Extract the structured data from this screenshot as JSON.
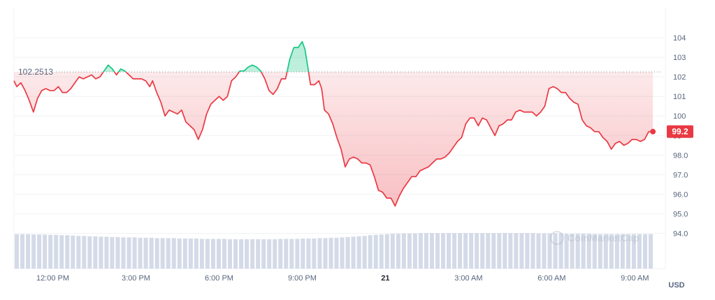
{
  "chart_data": {
    "type": "area",
    "currency_label": "USD",
    "watermark": "CoinMarketCap",
    "reference_value": 102.2513,
    "reference_label": "102.2513",
    "last_value": 99.2,
    "last_label": "99.2",
    "ylim": [
      92.2,
      105.5
    ],
    "xlim": [
      10.6,
      34.0
    ],
    "y_ticks": [
      {
        "value": 94.0,
        "label": "94.0"
      },
      {
        "value": 95.0,
        "label": "95.0"
      },
      {
        "value": 96.0,
        "label": "96.0"
      },
      {
        "value": 97.0,
        "label": "97.0"
      },
      {
        "value": 98.0,
        "label": "98.0"
      },
      {
        "value": 99.0,
        "label": "99"
      },
      {
        "value": 100.0,
        "label": "100"
      },
      {
        "value": 101.0,
        "label": "101"
      },
      {
        "value": 102.0,
        "label": "102"
      },
      {
        "value": 103.0,
        "label": "103"
      },
      {
        "value": 104.0,
        "label": "104"
      }
    ],
    "x_ticks": [
      {
        "value": 12,
        "label": "12:00 PM",
        "bold": false
      },
      {
        "value": 15,
        "label": "3:00 PM",
        "bold": false
      },
      {
        "value": 18,
        "label": "6:00 PM",
        "bold": false
      },
      {
        "value": 21,
        "label": "9:00 PM",
        "bold": false
      },
      {
        "value": 24,
        "label": "21",
        "bold": true
      },
      {
        "value": 27,
        "label": "3:00 AM",
        "bold": false
      },
      {
        "value": 30,
        "label": "6:00 AM",
        "bold": false
      },
      {
        "value": 33,
        "label": "9:00 AM",
        "bold": false
      }
    ],
    "colors": {
      "up": "#16c784",
      "down": "#ea3943",
      "grid": "#eff2f5",
      "axis_text": "#58667e",
      "volume": "#cfd6e4"
    },
    "series": [
      {
        "points": [
          [
            10.6,
            101.8
          ],
          [
            10.7,
            101.5
          ],
          [
            10.85,
            101.7
          ],
          [
            11.0,
            101.3
          ],
          [
            11.15,
            100.8
          ],
          [
            11.3,
            100.2
          ],
          [
            11.45,
            100.9
          ],
          [
            11.6,
            101.3
          ],
          [
            11.75,
            101.4
          ],
          [
            11.9,
            101.3
          ],
          [
            12.05,
            101.3
          ],
          [
            12.2,
            101.5
          ],
          [
            12.35,
            101.2
          ],
          [
            12.5,
            101.2
          ],
          [
            12.65,
            101.4
          ],
          [
            12.8,
            101.7
          ],
          [
            12.95,
            102.0
          ],
          [
            13.1,
            101.9
          ],
          [
            13.25,
            102.0
          ],
          [
            13.4,
            102.1
          ],
          [
            13.55,
            101.9
          ],
          [
            13.7,
            102.0
          ],
          [
            13.85,
            102.3
          ],
          [
            14.0,
            102.6
          ],
          [
            14.15,
            102.4
          ],
          [
            14.3,
            102.1
          ],
          [
            14.45,
            102.4
          ],
          [
            14.6,
            102.3
          ],
          [
            14.75,
            102.1
          ],
          [
            14.9,
            101.9
          ],
          [
            15.05,
            101.9
          ],
          [
            15.2,
            101.9
          ],
          [
            15.35,
            101.8
          ],
          [
            15.5,
            101.5
          ],
          [
            15.6,
            101.8
          ],
          [
            15.75,
            101.2
          ],
          [
            15.9,
            100.7
          ],
          [
            16.05,
            100.0
          ],
          [
            16.2,
            100.3
          ],
          [
            16.35,
            100.2
          ],
          [
            16.5,
            100.1
          ],
          [
            16.65,
            100.3
          ],
          [
            16.8,
            99.7
          ],
          [
            16.95,
            99.5
          ],
          [
            17.1,
            99.3
          ],
          [
            17.25,
            98.8
          ],
          [
            17.4,
            99.3
          ],
          [
            17.55,
            100.1
          ],
          [
            17.7,
            100.6
          ],
          [
            17.85,
            100.8
          ],
          [
            18.0,
            101.0
          ],
          [
            18.15,
            100.8
          ],
          [
            18.3,
            101.0
          ],
          [
            18.45,
            101.8
          ],
          [
            18.6,
            102.0
          ],
          [
            18.75,
            102.3
          ],
          [
            18.9,
            102.3
          ],
          [
            19.05,
            102.5
          ],
          [
            19.2,
            102.6
          ],
          [
            19.35,
            102.5
          ],
          [
            19.5,
            102.3
          ],
          [
            19.65,
            101.9
          ],
          [
            19.8,
            101.3
          ],
          [
            19.95,
            101.1
          ],
          [
            20.1,
            101.4
          ],
          [
            20.25,
            101.9
          ],
          [
            20.4,
            101.9
          ],
          [
            20.55,
            102.9
          ],
          [
            20.7,
            103.5
          ],
          [
            20.85,
            103.5
          ],
          [
            21.0,
            103.8
          ],
          [
            21.1,
            103.4
          ],
          [
            21.2,
            102.5
          ],
          [
            21.3,
            101.6
          ],
          [
            21.45,
            101.6
          ],
          [
            21.6,
            101.8
          ],
          [
            21.7,
            101.4
          ],
          [
            21.8,
            100.3
          ],
          [
            21.95,
            100.1
          ],
          [
            22.1,
            99.6
          ],
          [
            22.25,
            98.9
          ],
          [
            22.4,
            98.3
          ],
          [
            22.55,
            97.4
          ],
          [
            22.7,
            97.8
          ],
          [
            22.85,
            97.9
          ],
          [
            23.0,
            97.8
          ],
          [
            23.15,
            97.6
          ],
          [
            23.3,
            97.6
          ],
          [
            23.45,
            97.5
          ],
          [
            23.6,
            96.9
          ],
          [
            23.75,
            96.2
          ],
          [
            23.9,
            96.1
          ],
          [
            24.05,
            95.8
          ],
          [
            24.2,
            95.8
          ],
          [
            24.35,
            95.4
          ],
          [
            24.5,
            95.9
          ],
          [
            24.65,
            96.3
          ],
          [
            24.8,
            96.6
          ],
          [
            24.95,
            96.9
          ],
          [
            25.1,
            96.9
          ],
          [
            25.25,
            97.2
          ],
          [
            25.4,
            97.3
          ],
          [
            25.55,
            97.4
          ],
          [
            25.7,
            97.6
          ],
          [
            25.85,
            97.8
          ],
          [
            26.0,
            97.8
          ],
          [
            26.15,
            97.9
          ],
          [
            26.3,
            98.1
          ],
          [
            26.45,
            98.4
          ],
          [
            26.6,
            98.7
          ],
          [
            26.75,
            98.9
          ],
          [
            26.9,
            99.6
          ],
          [
            27.05,
            99.9
          ],
          [
            27.2,
            99.9
          ],
          [
            27.35,
            99.5
          ],
          [
            27.5,
            99.9
          ],
          [
            27.65,
            99.8
          ],
          [
            27.8,
            99.4
          ],
          [
            27.95,
            99.0
          ],
          [
            28.1,
            99.5
          ],
          [
            28.25,
            99.6
          ],
          [
            28.4,
            99.8
          ],
          [
            28.55,
            99.8
          ],
          [
            28.7,
            100.2
          ],
          [
            28.85,
            100.3
          ],
          [
            29.0,
            100.2
          ],
          [
            29.15,
            100.2
          ],
          [
            29.3,
            100.2
          ],
          [
            29.45,
            100.0
          ],
          [
            29.6,
            100.2
          ],
          [
            29.75,
            100.5
          ],
          [
            29.9,
            101.4
          ],
          [
            30.05,
            101.5
          ],
          [
            30.2,
            101.4
          ],
          [
            30.35,
            101.2
          ],
          [
            30.5,
            101.2
          ],
          [
            30.65,
            100.9
          ],
          [
            30.8,
            100.7
          ],
          [
            30.95,
            100.6
          ],
          [
            31.1,
            99.8
          ],
          [
            31.25,
            99.5
          ],
          [
            31.4,
            99.4
          ],
          [
            31.55,
            99.2
          ],
          [
            31.7,
            99.2
          ],
          [
            31.85,
            98.9
          ],
          [
            32.0,
            98.7
          ],
          [
            32.15,
            98.3
          ],
          [
            32.3,
            98.6
          ],
          [
            32.45,
            98.7
          ],
          [
            32.6,
            98.5
          ],
          [
            32.75,
            98.6
          ],
          [
            32.9,
            98.8
          ],
          [
            33.05,
            98.8
          ],
          [
            33.2,
            98.7
          ],
          [
            33.35,
            98.8
          ],
          [
            33.5,
            99.2
          ],
          [
            33.65,
            99.2
          ]
        ]
      }
    ],
    "volume_heights": [
      0.95,
      0.95,
      0.95,
      0.94,
      0.94,
      0.94,
      0.93,
      0.93,
      0.92,
      0.92,
      0.91,
      0.9,
      0.9,
      0.89,
      0.89,
      0.88,
      0.88,
      0.87,
      0.87,
      0.86,
      0.86,
      0.86,
      0.85,
      0.85,
      0.85,
      0.84,
      0.84,
      0.84,
      0.84,
      0.83,
      0.83,
      0.83,
      0.83,
      0.82,
      0.82,
      0.82,
      0.82,
      0.82,
      0.81,
      0.81,
      0.81,
      0.81,
      0.81,
      0.81,
      0.81,
      0.81,
      0.81,
      0.82,
      0.82,
      0.82,
      0.82,
      0.83,
      0.83,
      0.83,
      0.84,
      0.84,
      0.85,
      0.85,
      0.86,
      0.87,
      0.88,
      0.89,
      0.9,
      0.92,
      0.93,
      0.94,
      0.95,
      0.96,
      0.96,
      0.97,
      0.97,
      0.97,
      0.98,
      0.98,
      0.98,
      0.98,
      0.98,
      0.98,
      0.98,
      0.98,
      0.98,
      0.98,
      0.98,
      0.98,
      0.98,
      0.98,
      0.98,
      0.98,
      0.98,
      0.98,
      0.98,
      0.98,
      0.98,
      0.97,
      0.97,
      0.97,
      0.97,
      0.97,
      0.96,
      0.96,
      0.96,
      0.96,
      0.96,
      0.95,
      0.95,
      0.95,
      0.95,
      0.95,
      0.95,
      0.95,
      0.95,
      0.95,
      0.95,
      0.95
    ]
  }
}
